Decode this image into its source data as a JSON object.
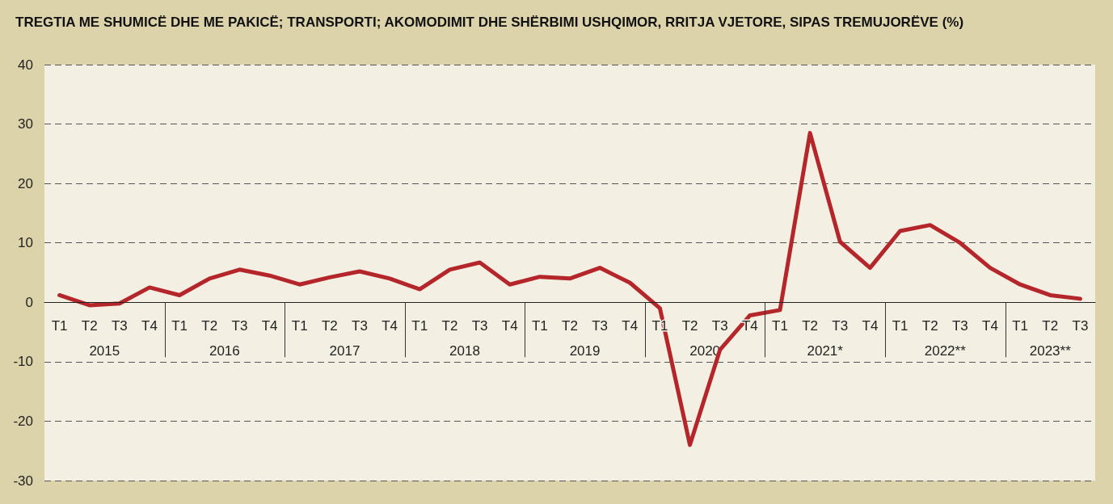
{
  "chart_data": {
    "type": "line",
    "title": "TREGTIA ME SHUMICË DHE ME PAKICË; TRANSPORTI; AKOMODIMIT DHE SHËRBIMI USHQIMOR, RRITJA VJETORE, SIPAS TREMUJORËVE (%)",
    "categories": [
      "T1",
      "T2",
      "T3",
      "T4",
      "T1",
      "T2",
      "T3",
      "T4",
      "T1",
      "T2",
      "T3",
      "T4",
      "T1",
      "T2",
      "T3",
      "T4",
      "T1",
      "T2",
      "T3",
      "T4",
      "T1",
      "T2",
      "T3",
      "T4",
      "T1",
      "T2",
      "T3",
      "T4",
      "T1",
      "T2",
      "T3",
      "T4",
      "T1",
      "T2",
      "T3"
    ],
    "annotations": [
      "2015",
      "2016",
      "2017",
      "2018",
      "2019",
      "2020",
      "2021*",
      "2022**",
      "2023**"
    ],
    "series": [
      {
        "color": "#b5262b",
        "values": [
          1.2,
          -0.5,
          -0.2,
          2.5,
          1.2,
          4,
          5.5,
          4.5,
          3,
          4.2,
          5.2,
          4,
          2.2,
          5.5,
          6.7,
          3,
          4.3,
          4,
          5.8,
          3.3,
          -1,
          -24,
          -8,
          -2.2,
          -1.3,
          28.5,
          10.2,
          5.8,
          12,
          13,
          10,
          5.8,
          3,
          1.2,
          0.6
        ]
      }
    ],
    "ylim": [
      -30,
      40
    ],
    "yticks": [
      -30,
      -20,
      -10,
      0,
      10,
      20,
      30,
      40
    ],
    "grid": "y",
    "marker": "none",
    "line_style": "solid"
  }
}
